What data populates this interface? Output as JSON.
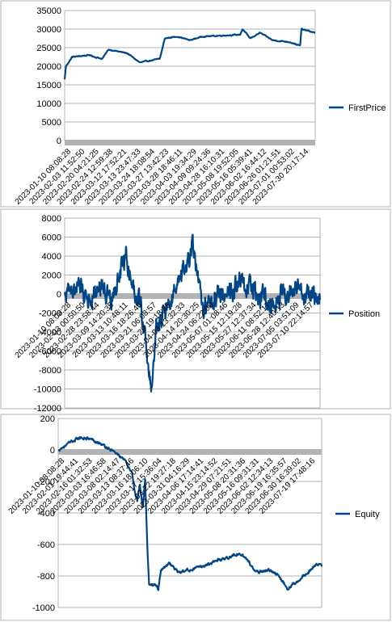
{
  "colors": {
    "series": "#004586",
    "zero_band": "#b3b3b3",
    "grid": "#b3b3b3",
    "frame": "#b3b3b3"
  },
  "chart_data": [
    {
      "type": "line",
      "series": [
        {
          "name": "FirstPrice"
        }
      ],
      "ylim": [
        0,
        35000
      ],
      "yticks": [
        "0",
        "5000",
        "10000",
        "15000",
        "20000",
        "25000",
        "30000",
        "35000"
      ],
      "x_tick_labels": [
        "2023-01-10 08:08:28",
        "2023-02-03 11:52:50",
        "2023-02-20 04:21:25",
        "2023-02-24 12:59:38",
        "2023-03-12 17:52:21",
        "2023-03-13 23:47:33",
        "2023-03-24 18:08:54",
        "2023-03-27 13:42:23",
        "2023-03-28 18:46:11",
        "2023-04-03 19:34:29",
        "2023-04-09 09:24:36",
        "2023-04-28 16:10:31",
        "2023-05-08 19:52:05",
        "2023-05-16 05:39:41",
        "2023-06-02 16:44:12",
        "2023-06-26 01:21:51",
        "2023-07-01 00:53:02",
        "2023-07-30 20:17:14"
      ],
      "legend_position": "right",
      "grid": "horizontal",
      "anchors": [
        [
          0,
          16500
        ],
        [
          0.005,
          20000
        ],
        [
          0.03,
          22500
        ],
        [
          0.1,
          23000
        ],
        [
          0.12,
          22500
        ],
        [
          0.15,
          22000
        ],
        [
          0.175,
          24500
        ],
        [
          0.25,
          23500
        ],
        [
          0.28,
          22000
        ],
        [
          0.3,
          21000
        ],
        [
          0.34,
          21500
        ],
        [
          0.38,
          22000
        ],
        [
          0.4,
          27500
        ],
        [
          0.45,
          28000
        ],
        [
          0.5,
          27000
        ],
        [
          0.55,
          28000
        ],
        [
          0.7,
          28500
        ],
        [
          0.71,
          30000
        ],
        [
          0.74,
          27500
        ],
        [
          0.78,
          29000
        ],
        [
          0.83,
          27000
        ],
        [
          0.9,
          26500
        ],
        [
          0.94,
          25500
        ],
        [
          0.945,
          30000
        ],
        [
          1,
          29000
        ]
      ]
    },
    {
      "type": "line",
      "series": [
        {
          "name": "Position"
        }
      ],
      "ylim": [
        -12000,
        8000
      ],
      "yticks": [
        "-12000",
        "-10000",
        "-8000",
        "-6000",
        "-4000",
        "-2000",
        "0",
        "2000",
        "4000",
        "6000",
        "8000"
      ],
      "x_tick_labels": [
        "2023-01-10 08:08:28",
        "2023-02-03 00:50:50",
        "2023-02-28 23:58:44",
        "2023-03-09 14:20:35",
        "2023-03-13 10:48:11",
        "2023-03-16 18:26:46",
        "2023-03-21 06:08:57",
        "2023-03-29 19:18:35",
        "2023-04-03 13:32:33",
        "2023-04-14 20:30:25",
        "2023-04-24 06:22:00",
        "2023-05-07 01:08:46",
        "2023-05-15 12:19:28",
        "2023-05-27 12:37:34",
        "2023-06-11 08:52:17",
        "2023-06-28 12:40:13",
        "2023-07-05 03:51:09",
        "2023-07-10 22:14:57"
      ],
      "legend_position": "right",
      "grid": "horizontal",
      "anchors": [
        [
          0,
          200
        ],
        [
          0.05,
          800
        ],
        [
          0.1,
          -300
        ],
        [
          0.15,
          1200
        ],
        [
          0.18,
          -1200
        ],
        [
          0.22,
          2500
        ],
        [
          0.24,
          4300
        ],
        [
          0.26,
          1500
        ],
        [
          0.29,
          -600
        ],
        [
          0.3,
          -1500
        ],
        [
          0.31,
          -3500
        ],
        [
          0.32,
          -6000
        ],
        [
          0.33,
          -8500
        ],
        [
          0.34,
          -9800
        ],
        [
          0.35,
          -6500
        ],
        [
          0.36,
          -3500
        ],
        [
          0.38,
          -2500
        ],
        [
          0.4,
          -1500
        ],
        [
          0.45,
          1000
        ],
        [
          0.48,
          3000
        ],
        [
          0.5,
          5500
        ],
        [
          0.52,
          1500
        ],
        [
          0.54,
          -1500
        ],
        [
          0.6,
          0
        ],
        [
          0.7,
          1200
        ],
        [
          0.8,
          -800
        ],
        [
          0.9,
          500
        ],
        [
          0.95,
          -200
        ],
        [
          1,
          -600
        ]
      ]
    },
    {
      "type": "line",
      "series": [
        {
          "name": "Equity"
        }
      ],
      "ylim": [
        -1000,
        200
      ],
      "yticks": [
        "-1000",
        "-800",
        "-600",
        "-400",
        "-200",
        "0",
        "200"
      ],
      "x_tick_labels": [
        "2023-01-10 08:08:28",
        "2023-02-01 19:44:41",
        "2023-02-16 01:32:53",
        "2023-03-03 16:46:58",
        "2023-03-08 02:14:47",
        "2023-03-13 08:37:46",
        "2023-03-16 18:06:10",
        "2023-03-17 15:36:04",
        "2023-03-22 19:27:18",
        "2023-03-31 04:16:29",
        "2023-04-06 17:14:41",
        "2023-04-15 23:14:52",
        "2023-04-29 07:21:51",
        "2023-05-08 20:31:36",
        "2023-05-16 09:31:31",
        "2023-06-02 12:34:13",
        "2023-06-19 16:35:57",
        "2023-06-30 16:39:02",
        "2023-07-19 17:48:16"
      ],
      "legend_position": "right",
      "grid": "horizontal",
      "anchors": [
        [
          0,
          0
        ],
        [
          0.03,
          30
        ],
        [
          0.07,
          70
        ],
        [
          0.1,
          80
        ],
        [
          0.14,
          60
        ],
        [
          0.18,
          20
        ],
        [
          0.22,
          -20
        ],
        [
          0.25,
          -60
        ],
        [
          0.28,
          -150
        ],
        [
          0.29,
          -250
        ],
        [
          0.3,
          -320
        ],
        [
          0.31,
          -220
        ],
        [
          0.32,
          -370
        ],
        [
          0.325,
          -300
        ],
        [
          0.33,
          -200
        ],
        [
          0.338,
          -600
        ],
        [
          0.345,
          -850
        ],
        [
          0.36,
          -860
        ],
        [
          0.37,
          -850
        ],
        [
          0.38,
          -880
        ],
        [
          0.39,
          -760
        ],
        [
          0.42,
          -720
        ],
        [
          0.46,
          -780
        ],
        [
          0.5,
          -760
        ],
        [
          0.55,
          -740
        ],
        [
          0.6,
          -700
        ],
        [
          0.65,
          -680
        ],
        [
          0.68,
          -660
        ],
        [
          0.7,
          -670
        ],
        [
          0.72,
          -700
        ],
        [
          0.75,
          -780
        ],
        [
          0.8,
          -760
        ],
        [
          0.83,
          -790
        ],
        [
          0.85,
          -830
        ],
        [
          0.87,
          -880
        ],
        [
          0.9,
          -840
        ],
        [
          0.93,
          -800
        ],
        [
          0.95,
          -780
        ],
        [
          0.98,
          -720
        ],
        [
          1,
          -740
        ]
      ]
    }
  ]
}
